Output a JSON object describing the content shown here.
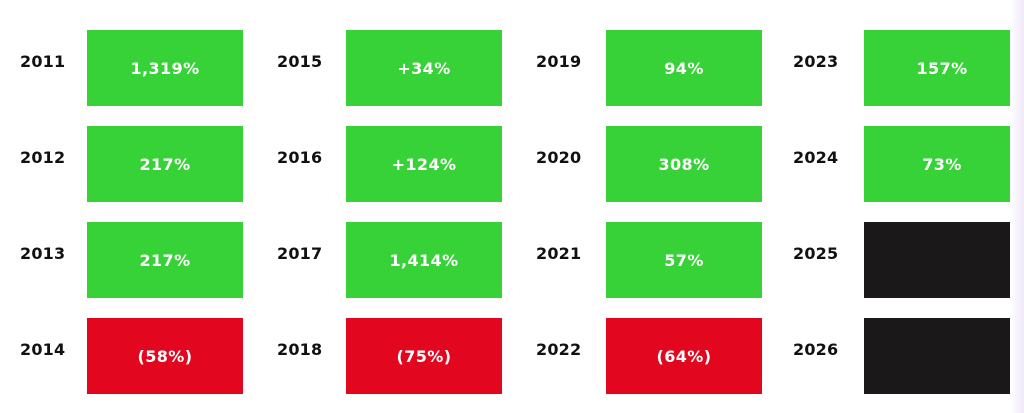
{
  "colors": {
    "positive": "#37d138",
    "negative": "#e2071f",
    "pending": "#1a1818"
  },
  "chart_data": {
    "type": "table",
    "columns": [
      {
        "rows": [
          {
            "year": "2011",
            "value": "1,319%",
            "status": "positive"
          },
          {
            "year": "2012",
            "value": "217%",
            "status": "positive"
          },
          {
            "year": "2013",
            "value": "217%",
            "status": "positive"
          },
          {
            "year": "2014",
            "value": "(58%)",
            "status": "negative"
          }
        ]
      },
      {
        "rows": [
          {
            "year": "2015",
            "value": "+34%",
            "status": "positive"
          },
          {
            "year": "2016",
            "value": "+124%",
            "status": "positive"
          },
          {
            "year": "2017",
            "value": "1,414%",
            "status": "positive"
          },
          {
            "year": "2018",
            "value": "(75%)",
            "status": "negative"
          }
        ]
      },
      {
        "rows": [
          {
            "year": "2019",
            "value": "94%",
            "status": "positive"
          },
          {
            "year": "2020",
            "value": "308%",
            "status": "positive"
          },
          {
            "year": "2021",
            "value": "57%",
            "status": "positive"
          },
          {
            "year": "2022",
            "value": "(64%)",
            "status": "negative"
          }
        ]
      },
      {
        "rows": [
          {
            "year": "2023",
            "value": "157%",
            "status": "positive"
          },
          {
            "year": "2024",
            "value": "73%",
            "status": "positive"
          },
          {
            "year": "2025",
            "value": "",
            "status": "pending"
          },
          {
            "year": "2026",
            "value": "",
            "status": "pending"
          }
        ]
      }
    ]
  }
}
